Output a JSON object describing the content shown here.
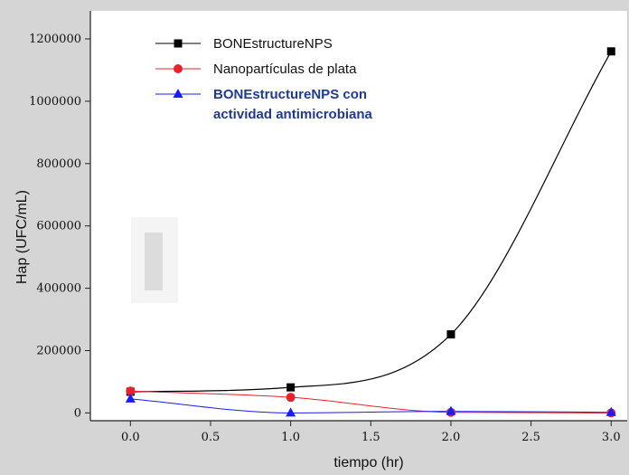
{
  "chart_data": {
    "type": "line",
    "xlabel": "tiempo (hr)",
    "ylabel": "Hap (UFC/mL)",
    "xlim": [
      -0.25,
      3.1
    ],
    "ylim": [
      -25000,
      1290000
    ],
    "xticks": [
      "0.0",
      "0.5",
      "1.0",
      "1.5",
      "2.0",
      "2.5",
      "3.0"
    ],
    "xtick_values": [
      0.0,
      0.5,
      1.0,
      1.5,
      2.0,
      2.5,
      3.0
    ],
    "yticks": [
      "0",
      "200000",
      "400000",
      "600000",
      "800000",
      "1000000",
      "1200000"
    ],
    "ytick_values": [
      0,
      200000,
      400000,
      600000,
      800000,
      1000000,
      1200000
    ],
    "grid": false,
    "legend_position": "top-left",
    "series": [
      {
        "name": "BONEstructureNPS",
        "color": "#000000",
        "marker": "square",
        "x": [
          0,
          1,
          2,
          3
        ],
        "y": [
          68000,
          82000,
          252000,
          1160000
        ]
      },
      {
        "name": "Nanopartículas de plata",
        "color": "#e8212b",
        "marker": "circle",
        "x": [
          0,
          1,
          2,
          3
        ],
        "y": [
          70000,
          50000,
          2000,
          0
        ]
      },
      {
        "name": "BONEstructureNPS con actividad antimicrobiana",
        "name_lines": [
          "BONEstructureNPS con",
          "actividad antimicrobiana"
        ],
        "color": "#1a1aff",
        "marker": "triangle",
        "x": [
          0,
          1,
          2,
          3
        ],
        "y": [
          45000,
          0,
          5000,
          2000
        ]
      }
    ]
  }
}
